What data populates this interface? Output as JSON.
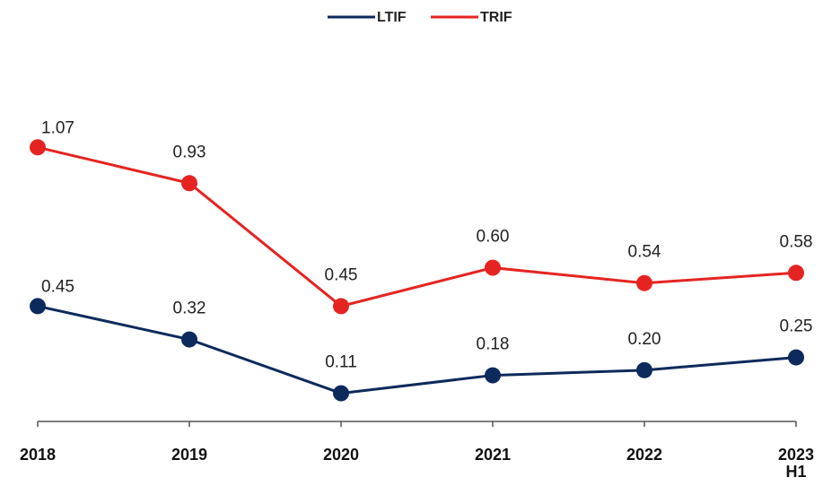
{
  "chart_data": {
    "type": "line",
    "categories": [
      "2018",
      "2019",
      "2020",
      "2021",
      "2022",
      "2023 H1"
    ],
    "series": [
      {
        "name": "LTIF",
        "color": "#0d2a5c",
        "values": [
          0.45,
          0.32,
          0.11,
          0.18,
          0.2,
          0.25
        ],
        "value_labels": [
          "0.45",
          "0.32",
          "0.11",
          "0.18",
          "0.20",
          "0.25"
        ]
      },
      {
        "name": "TRIF",
        "color": "#e52421",
        "values": [
          1.07,
          0.93,
          0.45,
          0.6,
          0.54,
          0.58
        ],
        "value_labels": [
          "1.07",
          "0.93",
          "0.45",
          "0.60",
          "0.54",
          "0.58"
        ]
      }
    ],
    "ylim": [
      0,
      1.4
    ],
    "legend": "top"
  }
}
